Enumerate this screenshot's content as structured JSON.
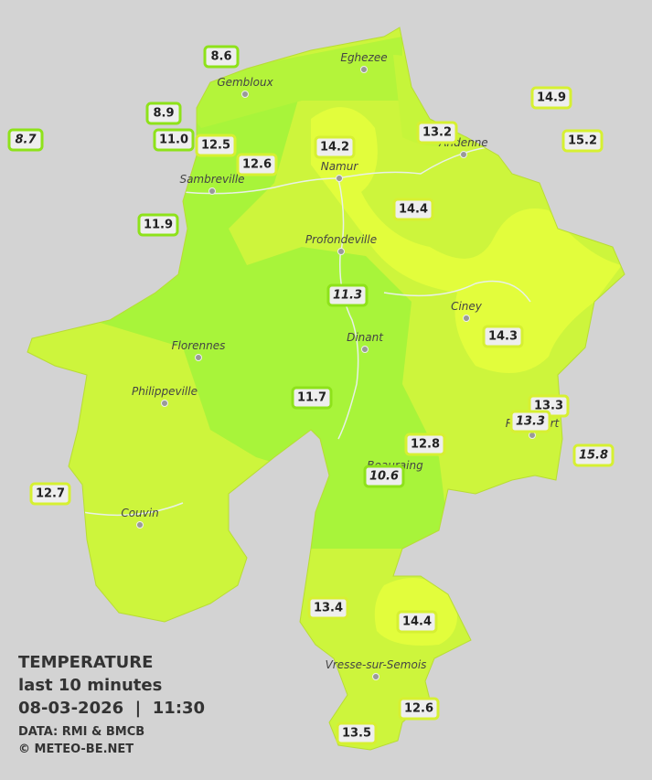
{
  "legend": {
    "title": "TEMPERATURE",
    "subtitle": "last 10 minutes",
    "timestamp": "08-03-2026  |  11:30",
    "source": "DATA: RMI & BMCB",
    "credit": "© METEO-BE.NET"
  },
  "cities": [
    "Eghezee",
    "Gembloux",
    "Andenne",
    "Namur",
    "Sambreville",
    "Profondeville",
    "Ciney",
    "Dinant",
    "Florennes",
    "Philippeville",
    "Rochefort",
    "Beauraing",
    "Couvin",
    "Vresse-sur-Semois"
  ],
  "stations": [
    {
      "label": "8.6",
      "italic": false
    },
    {
      "label": "8.9",
      "italic": false
    },
    {
      "label": "8.7",
      "italic": true
    },
    {
      "label": "11.0",
      "italic": false
    },
    {
      "label": "12.5",
      "italic": false
    },
    {
      "label": "12.6",
      "italic": false
    },
    {
      "label": "14.2",
      "italic": false
    },
    {
      "label": "13.2",
      "italic": false
    },
    {
      "label": "14.9",
      "italic": false
    },
    {
      "label": "15.2",
      "italic": false
    },
    {
      "label": "11.9",
      "italic": false
    },
    {
      "label": "14.4",
      "italic": false
    },
    {
      "label": "11.3",
      "italic": true
    },
    {
      "label": "14.3",
      "italic": false
    },
    {
      "label": "11.7",
      "italic": false
    },
    {
      "label": "13.3",
      "italic": false
    },
    {
      "label": "13.3",
      "italic": true
    },
    {
      "label": "12.8",
      "italic": false
    },
    {
      "label": "15.8",
      "italic": true
    },
    {
      "label": "10.6",
      "italic": true
    },
    {
      "label": "12.7",
      "italic": false
    },
    {
      "label": "13.4",
      "italic": false
    },
    {
      "label": "14.4",
      "italic": false
    },
    {
      "label": "12.6",
      "italic": false
    },
    {
      "label": "13.5",
      "italic": false
    }
  ]
}
